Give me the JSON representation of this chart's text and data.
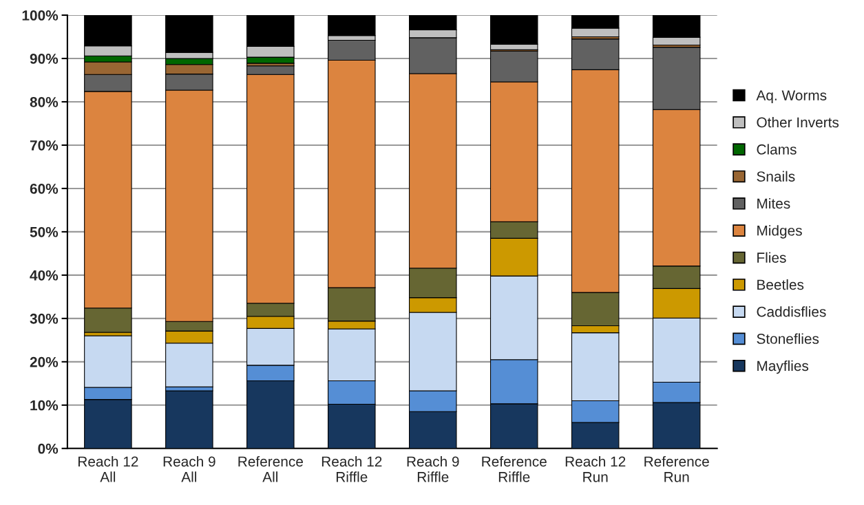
{
  "chart_data": {
    "type": "bar",
    "stacked": true,
    "categories": [
      "Reach 12\nAll",
      "Reach 9\nAll",
      "Reference\nAll",
      "Reach 12\nRiffle",
      "Reach 9\nRiffle",
      "Reference\nRiffle",
      "Reach 12\nRun",
      "Reference\nRun"
    ],
    "series": [
      {
        "name": "Mayflies",
        "color": "#17375e",
        "values": [
          11.3,
          13.3,
          15.6,
          10.2,
          8.5,
          10.3,
          6.0,
          10.6
        ]
      },
      {
        "name": "Stoneflies",
        "color": "#558ed5",
        "values": [
          2.8,
          0.9,
          3.6,
          5.4,
          4.8,
          10.2,
          5.0,
          4.7
        ]
      },
      {
        "name": "Caddisflies",
        "color": "#c6d9f1",
        "values": [
          11.9,
          10.1,
          8.5,
          12.0,
          18.1,
          19.3,
          15.7,
          14.8
        ]
      },
      {
        "name": "Beetles",
        "color": "#cc9900",
        "values": [
          0.8,
          2.8,
          2.8,
          1.8,
          3.4,
          8.7,
          1.6,
          6.8
        ]
      },
      {
        "name": "Flies",
        "color": "#666633",
        "values": [
          5.6,
          2.2,
          3.0,
          7.7,
          6.8,
          3.8,
          7.7,
          5.2
        ]
      },
      {
        "name": "Midges",
        "color": "#dc843f",
        "values": [
          50.0,
          53.4,
          52.8,
          52.5,
          44.9,
          32.3,
          51.4,
          36.1
        ]
      },
      {
        "name": "Mites",
        "color": "#616161",
        "values": [
          3.9,
          3.7,
          2.0,
          4.6,
          8.3,
          7.1,
          7.1,
          14.4
        ]
      },
      {
        "name": "Snails",
        "color": "#996633",
        "values": [
          2.9,
          2.2,
          0.6,
          0,
          0,
          0.3,
          0.5,
          0.5
        ]
      },
      {
        "name": "Clams",
        "color": "#006600",
        "values": [
          1.4,
          1.4,
          1.4,
          0,
          0,
          0,
          0,
          0
        ]
      },
      {
        "name": "Other Inverts",
        "color": "#bfbfbf",
        "values": [
          2.3,
          1.4,
          2.5,
          1.1,
          1.8,
          1.3,
          2.0,
          1.8
        ]
      },
      {
        "name": "Aq. Worms",
        "color": "#000000",
        "values": [
          7.1,
          8.6,
          7.2,
          4.7,
          3.4,
          6.7,
          3.0,
          5.1
        ]
      }
    ],
    "ylim": [
      0,
      100
    ],
    "yticks": [
      {
        "value": 0,
        "label": "0%"
      },
      {
        "value": 10,
        "label": "10%"
      },
      {
        "value": 20,
        "label": "20%"
      },
      {
        "value": 30,
        "label": "30%"
      },
      {
        "value": 40,
        "label": "40%"
      },
      {
        "value": 50,
        "label": "50%"
      },
      {
        "value": 60,
        "label": "60%"
      },
      {
        "value": 70,
        "label": "70%"
      },
      {
        "value": 80,
        "label": "80%"
      },
      {
        "value": 90,
        "label": "90%"
      },
      {
        "value": 100,
        "label": "100%"
      }
    ],
    "grid": "y",
    "legend": "right"
  }
}
